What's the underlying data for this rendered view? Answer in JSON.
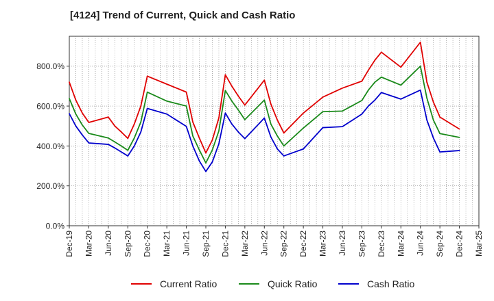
{
  "title": "[4124]  Trend of Current, Quick and Cash Ratio",
  "chart_data": {
    "type": "line",
    "title": "[4124]  Trend of Current, Quick and Cash Ratio",
    "xlabel": "",
    "ylabel": "",
    "ylim": [
      0,
      950
    ],
    "yticks": [
      0,
      200,
      400,
      600,
      800
    ],
    "ytick_labels": [
      "0.0%",
      "200.0%",
      "400.0%",
      "600.0%",
      "800.0%"
    ],
    "grid": true,
    "legend_position": "bottom",
    "x_tick_labels": [
      "Dec-19",
      "Mar-20",
      "Jun-20",
      "Sep-20",
      "Dec-20",
      "Mar-21",
      "Jun-21",
      "Sep-21",
      "Dec-21",
      "Mar-22",
      "Jun-22",
      "Sep-22",
      "Dec-22",
      "Mar-23",
      "Jun-23",
      "Sep-23",
      "Dec-23",
      "Mar-24",
      "Jun-24",
      "Sep-24",
      "Dec-24",
      "Mar-25"
    ],
    "x": [
      "Dec-19",
      "Jan-20",
      "Feb-20",
      "Mar-20",
      "Jun-20",
      "Jul-20",
      "Aug-20",
      "Sep-20",
      "Oct-20",
      "Nov-20",
      "Dec-20",
      "Mar-21",
      "Jun-21",
      "Jul-21",
      "Aug-21",
      "Sep-21",
      "Oct-21",
      "Nov-21",
      "Dec-21",
      "Jan-22",
      "Feb-22",
      "Mar-22",
      "Jun-22",
      "Jul-22",
      "Aug-22",
      "Sep-22",
      "Dec-22",
      "Mar-23",
      "Jun-23",
      "Sep-23",
      "Oct-23",
      "Nov-23",
      "Dec-23",
      "Mar-24",
      "Jun-24",
      "Jul-24",
      "Aug-24",
      "Sep-24",
      "Dec-24"
    ],
    "series": [
      {
        "name": "Current Ratio",
        "color": "#e00000",
        "values": [
          720,
          630,
          565,
          518,
          545,
          500,
          470,
          438,
          510,
          600,
          750,
          710,
          670,
          520,
          440,
          365,
          430,
          540,
          757,
          700,
          650,
          605,
          730,
          610,
          530,
          465,
          565,
          645,
          690,
          725,
          780,
          830,
          870,
          795,
          920,
          720,
          620,
          545,
          485
        ]
      },
      {
        "name": "Quick Ratio",
        "color": "#1a8a1a",
        "values": [
          638,
          560,
          505,
          463,
          440,
          420,
          400,
          378,
          440,
          520,
          670,
          625,
          600,
          450,
          380,
          315,
          380,
          475,
          678,
          625,
          580,
          532,
          630,
          510,
          450,
          400,
          490,
          572,
          575,
          628,
          680,
          720,
          745,
          705,
          800,
          640,
          530,
          462,
          443
        ]
      },
      {
        "name": "Cash Ratio",
        "color": "#0000cc",
        "values": [
          562,
          500,
          455,
          415,
          408,
          390,
          370,
          350,
          400,
          470,
          588,
          560,
          498,
          400,
          325,
          272,
          320,
          410,
          565,
          510,
          470,
          437,
          540,
          445,
          385,
          350,
          385,
          492,
          497,
          560,
          600,
          630,
          668,
          635,
          680,
          530,
          440,
          370,
          377
        ]
      }
    ]
  }
}
